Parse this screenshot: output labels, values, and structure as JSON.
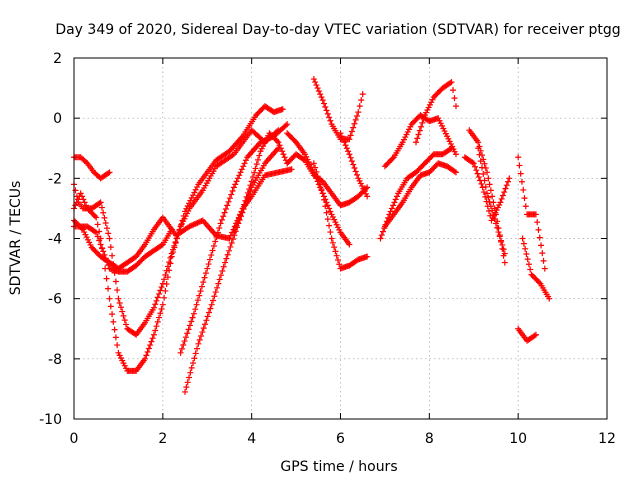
{
  "chart_data": {
    "type": "scatter",
    "title": "Day 349 of 2020, Sidereal Day-to-day VTEC variation (SDTVAR) for receiver ptgg",
    "xlabel": "GPS time / hours",
    "ylabel": "SDTVAR / TECUs",
    "xlim": [
      0,
      12
    ],
    "ylim": [
      -10,
      2
    ],
    "xticks": [
      0,
      2,
      4,
      6,
      8,
      10,
      12
    ],
    "yticks": [
      -10,
      -8,
      -6,
      -4,
      -2,
      0,
      2
    ],
    "grid": true,
    "marker": "+",
    "color": "#ff0000",
    "series": [
      {
        "x": [
          0.0,
          0.15,
          0.3,
          0.45,
          0.6,
          0.8
        ],
        "y": [
          -1.3,
          -1.3,
          -1.5,
          -1.8,
          -2.0,
          -1.8
        ]
      },
      {
        "x": [
          0.0,
          0.2,
          0.4,
          0.6,
          0.8,
          1.0,
          1.2,
          1.4,
          1.6,
          1.8,
          2.0,
          2.3,
          2.6,
          2.9,
          3.2,
          3.5,
          3.8,
          4.0,
          4.3,
          4.6,
          4.9
        ],
        "y": [
          -3.4,
          -3.7,
          -4.3,
          -4.6,
          -4.8,
          -5.0,
          -4.8,
          -4.6,
          -4.2,
          -3.7,
          -3.3,
          -3.9,
          -3.6,
          -3.4,
          -3.9,
          -4.0,
          -3.0,
          -2.6,
          -1.9,
          -1.8,
          -1.7
        ]
      },
      {
        "x": [
          0.0,
          0.1,
          0.3,
          0.5,
          0.6,
          0.8,
          1.0,
          1.2,
          1.4,
          1.6,
          1.8,
          2.0,
          2.2
        ],
        "y": [
          -3.6,
          -3.6,
          -3.6,
          -3.8,
          -4.2,
          -5.0,
          -5.1,
          -5.1,
          -4.9,
          -4.6,
          -4.4,
          -4.2,
          -3.7
        ]
      },
      {
        "x": [
          0.0,
          0.1,
          0.2,
          0.4,
          0.6,
          0.8,
          1.0,
          1.2,
          1.4,
          1.6,
          1.8,
          2.0,
          2.2,
          2.4,
          2.6,
          2.9,
          3.2,
          3.6,
          4.0,
          4.3,
          4.6
        ],
        "y": [
          -2.2,
          -2.8,
          -3.0,
          -3.0,
          -2.8,
          -4.0,
          -6.0,
          -7.0,
          -7.2,
          -6.8,
          -6.3,
          -5.5,
          -4.5,
          -3.6,
          -3.0,
          -2.4,
          -1.6,
          -1.2,
          -0.4,
          -0.8,
          -0.4
        ]
      },
      {
        "x": [
          0.0,
          0.15,
          0.3,
          0.5,
          0.6,
          0.7,
          0.8,
          1.0,
          1.2,
          1.4,
          1.6,
          1.8,
          2.0,
          2.2,
          2.5,
          2.8,
          3.2,
          3.5,
          3.8,
          4.1,
          4.3,
          4.5,
          4.7
        ],
        "y": [
          -3.0,
          -2.5,
          -3.0,
          -3.3,
          -4.0,
          -5.0,
          -6.0,
          -7.8,
          -8.4,
          -8.4,
          -8.0,
          -7.2,
          -6.2,
          -4.6,
          -3.1,
          -2.2,
          -1.4,
          -1.1,
          -0.6,
          0.1,
          0.4,
          0.2,
          0.3
        ]
      },
      {
        "x": [
          2.4,
          2.7,
          3.0,
          3.3,
          3.6,
          3.9,
          4.2,
          4.5,
          4.8
        ],
        "y": [
          -7.8,
          -6.5,
          -5.0,
          -3.5,
          -2.3,
          -1.3,
          -0.8,
          -0.6,
          -0.2
        ]
      },
      {
        "x": [
          2.5,
          2.8,
          3.1,
          3.4,
          3.7,
          4.0,
          4.3,
          4.6
        ],
        "y": [
          -9.1,
          -7.5,
          -6.2,
          -4.8,
          -3.5,
          -2.3,
          -1.5,
          -1.0
        ]
      },
      {
        "x": [
          3.6,
          3.8,
          4.0,
          4.2,
          4.4,
          4.6,
          4.8
        ],
        "y": [
          -3.8,
          -3.0,
          -2.1,
          -1.1,
          -0.5,
          -0.8,
          -1.5
        ]
      },
      {
        "x": [
          4.8,
          5.0,
          5.2,
          5.4,
          5.6,
          5.8,
          6.0,
          6.2,
          6.4,
          6.6
        ],
        "y": [
          -1.5,
          -1.2,
          -1.4,
          -1.9,
          -2.1,
          -2.5,
          -2.9,
          -2.8,
          -2.6,
          -2.3
        ]
      },
      {
        "x": [
          4.8,
          5.0,
          5.2,
          5.4,
          5.6,
          5.8,
          6.0,
          6.2
        ],
        "y": [
          -0.5,
          -0.8,
          -1.2,
          -1.8,
          -2.5,
          -3.2,
          -3.8,
          -4.2
        ]
      },
      {
        "x": [
          5.4,
          5.6,
          5.8,
          6.0,
          6.2,
          6.4,
          6.5
        ],
        "y": [
          1.3,
          0.6,
          -0.2,
          -0.7,
          -0.7,
          0.2,
          0.8
        ]
      },
      {
        "x": [
          5.4,
          5.6,
          5.8,
          6.0,
          6.2,
          6.4,
          6.6
        ],
        "y": [
          -1.5,
          -2.5,
          -4.0,
          -5.0,
          -4.9,
          -4.7,
          -4.6
        ]
      },
      {
        "x": [
          6.0,
          6.2,
          6.4,
          6.6
        ],
        "y": [
          -0.5,
          -1.2,
          -2.0,
          -2.6
        ]
      },
      {
        "x": [
          6.9,
          7.1,
          7.3,
          7.5,
          7.7,
          7.9,
          8.1,
          8.3,
          8.5
        ],
        "y": [
          -4.0,
          -3.2,
          -2.5,
          -2.0,
          -1.8,
          -1.5,
          -1.2,
          -1.2,
          -1.0
        ]
      },
      {
        "x": [
          7.0,
          7.2,
          7.4,
          7.6,
          7.8,
          8.0,
          8.2,
          8.4,
          8.6
        ],
        "y": [
          -3.6,
          -3.2,
          -2.8,
          -2.3,
          -1.9,
          -1.8,
          -1.5,
          -1.6,
          -1.8
        ]
      },
      {
        "x": [
          7.0,
          7.2,
          7.4,
          7.6,
          7.8,
          8.0,
          8.2,
          8.4,
          8.6
        ],
        "y": [
          -1.6,
          -1.3,
          -0.8,
          -0.2,
          0.1,
          -0.1,
          0.0,
          -0.6,
          -1.2
        ]
      },
      {
        "x": [
          7.7,
          7.9,
          8.1,
          8.3,
          8.5,
          8.6
        ],
        "y": [
          -0.8,
          0.1,
          0.7,
          1.0,
          1.2,
          0.4
        ]
      },
      {
        "x": [
          8.8,
          9.0,
          9.2,
          9.4,
          9.6,
          9.8
        ],
        "y": [
          -1.3,
          -1.5,
          -2.3,
          -3.4,
          -2.8,
          -2.0
        ]
      },
      {
        "x": [
          8.9,
          9.1,
          9.3,
          9.5,
          9.7
        ],
        "y": [
          -0.4,
          -0.8,
          -1.8,
          -3.2,
          -4.8
        ]
      },
      {
        "x": [
          9.1,
          9.3,
          9.5,
          9.7
        ],
        "y": [
          -1.0,
          -2.5,
          -3.5,
          -4.5
        ]
      },
      {
        "x": [
          10.0,
          10.2,
          10.4,
          10.6
        ],
        "y": [
          -1.3,
          -3.2,
          -3.2,
          -5.0
        ]
      },
      {
        "x": [
          10.1,
          10.3,
          10.5,
          10.7
        ],
        "y": [
          -4.0,
          -5.2,
          -5.5,
          -6.0
        ]
      },
      {
        "x": [
          10.0,
          10.2,
          10.4
        ],
        "y": [
          -7.0,
          -7.4,
          -7.2
        ]
      }
    ]
  }
}
